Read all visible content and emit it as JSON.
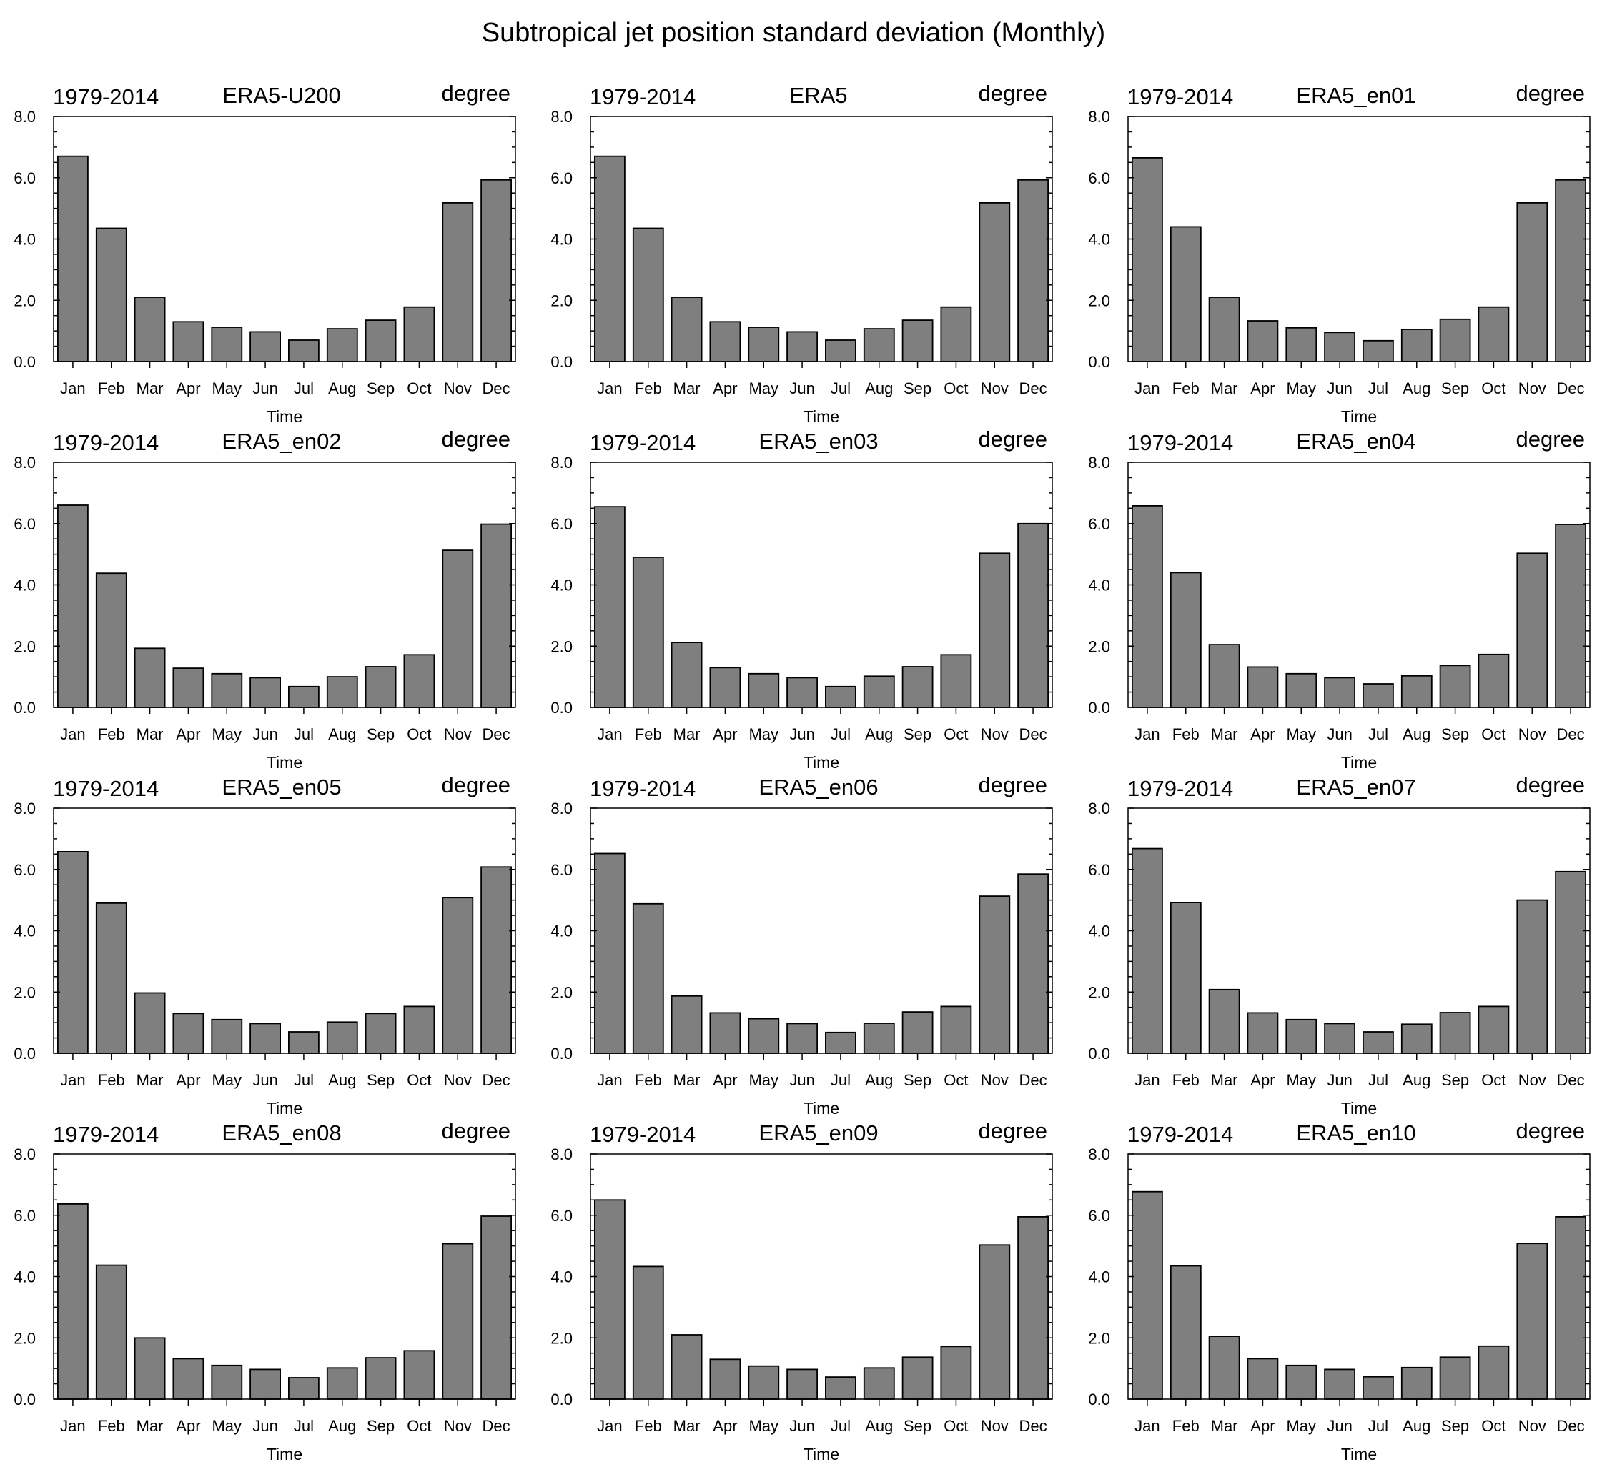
{
  "figure_title": "Subtropical jet position standard deviation (Monthly)",
  "colors": {
    "bar_fill": "#7f7f7f",
    "bar_edge": "#000000",
    "background": "#ffffff"
  },
  "chart_data": [
    {
      "type": "bar",
      "left_label": "1979-2014",
      "title": "ERA5-U200",
      "right_label": "degree",
      "xlabel": "Time",
      "ylabel": "",
      "ylim": [
        0,
        8
      ],
      "yticks": [
        "0.0",
        "2.0",
        "4.0",
        "6.0",
        "8.0"
      ],
      "categories": [
        "Jan",
        "Feb",
        "Mar",
        "Apr",
        "May",
        "Jun",
        "Jul",
        "Aug",
        "Sep",
        "Oct",
        "Nov",
        "Dec"
      ],
      "values": [
        6.7,
        4.35,
        2.1,
        1.3,
        1.12,
        0.97,
        0.7,
        1.07,
        1.35,
        1.78,
        5.18,
        5.93
      ]
    },
    {
      "type": "bar",
      "left_label": "1979-2014",
      "title": "ERA5",
      "right_label": "degree",
      "xlabel": "Time",
      "ylabel": "",
      "ylim": [
        0,
        8
      ],
      "yticks": [
        "0.0",
        "2.0",
        "4.0",
        "6.0",
        "8.0"
      ],
      "categories": [
        "Jan",
        "Feb",
        "Mar",
        "Apr",
        "May",
        "Jun",
        "Jul",
        "Aug",
        "Sep",
        "Oct",
        "Nov",
        "Dec"
      ],
      "values": [
        6.7,
        4.35,
        2.1,
        1.3,
        1.12,
        0.97,
        0.7,
        1.07,
        1.35,
        1.78,
        5.18,
        5.93
      ]
    },
    {
      "type": "bar",
      "left_label": "1979-2014",
      "title": "ERA5_en01",
      "right_label": "degree",
      "xlabel": "Time",
      "ylabel": "",
      "ylim": [
        0,
        8
      ],
      "yticks": [
        "0.0",
        "2.0",
        "4.0",
        "6.0",
        "8.0"
      ],
      "categories": [
        "Jan",
        "Feb",
        "Mar",
        "Apr",
        "May",
        "Jun",
        "Jul",
        "Aug",
        "Sep",
        "Oct",
        "Nov",
        "Dec"
      ],
      "values": [
        6.65,
        4.4,
        2.1,
        1.33,
        1.1,
        0.95,
        0.68,
        1.05,
        1.38,
        1.78,
        5.18,
        5.93
      ]
    },
    {
      "type": "bar",
      "left_label": "1979-2014",
      "title": "ERA5_en02",
      "right_label": "degree",
      "xlabel": "Time",
      "ylabel": "",
      "ylim": [
        0,
        8
      ],
      "yticks": [
        "0.0",
        "2.0",
        "4.0",
        "6.0",
        "8.0"
      ],
      "categories": [
        "Jan",
        "Feb",
        "Mar",
        "Apr",
        "May",
        "Jun",
        "Jul",
        "Aug",
        "Sep",
        "Oct",
        "Nov",
        "Dec"
      ],
      "values": [
        6.6,
        4.38,
        1.93,
        1.28,
        1.1,
        0.97,
        0.68,
        1.0,
        1.33,
        1.72,
        5.13,
        5.98
      ]
    },
    {
      "type": "bar",
      "left_label": "1979-2014",
      "title": "ERA5_en03",
      "right_label": "degree",
      "xlabel": "Time",
      "ylabel": "",
      "ylim": [
        0,
        8
      ],
      "yticks": [
        "0.0",
        "2.0",
        "4.0",
        "6.0",
        "8.0"
      ],
      "categories": [
        "Jan",
        "Feb",
        "Mar",
        "Apr",
        "May",
        "Jun",
        "Jul",
        "Aug",
        "Sep",
        "Oct",
        "Nov",
        "Dec"
      ],
      "values": [
        6.55,
        4.9,
        2.12,
        1.3,
        1.1,
        0.97,
        0.68,
        1.02,
        1.33,
        1.72,
        5.03,
        6.0
      ]
    },
    {
      "type": "bar",
      "left_label": "1979-2014",
      "title": "ERA5_en04",
      "right_label": "degree",
      "xlabel": "Time",
      "ylabel": "",
      "ylim": [
        0,
        8
      ],
      "yticks": [
        "0.0",
        "2.0",
        "4.0",
        "6.0",
        "8.0"
      ],
      "categories": [
        "Jan",
        "Feb",
        "Mar",
        "Apr",
        "May",
        "Jun",
        "Jul",
        "Aug",
        "Sep",
        "Oct",
        "Nov",
        "Dec"
      ],
      "values": [
        6.58,
        4.4,
        2.05,
        1.32,
        1.1,
        0.97,
        0.77,
        1.03,
        1.37,
        1.73,
        5.03,
        5.97
      ]
    },
    {
      "type": "bar",
      "left_label": "1979-2014",
      "title": "ERA5_en05",
      "right_label": "degree",
      "xlabel": "Time",
      "ylabel": "",
      "ylim": [
        0,
        8
      ],
      "yticks": [
        "0.0",
        "2.0",
        "4.0",
        "6.0",
        "8.0"
      ],
      "categories": [
        "Jan",
        "Feb",
        "Mar",
        "Apr",
        "May",
        "Jun",
        "Jul",
        "Aug",
        "Sep",
        "Oct",
        "Nov",
        "Dec"
      ],
      "values": [
        6.58,
        4.9,
        1.97,
        1.3,
        1.1,
        0.97,
        0.7,
        1.02,
        1.3,
        1.53,
        5.08,
        6.08
      ]
    },
    {
      "type": "bar",
      "left_label": "1979-2014",
      "title": "ERA5_en06",
      "right_label": "degree",
      "xlabel": "Time",
      "ylabel": "",
      "ylim": [
        0,
        8
      ],
      "yticks": [
        "0.0",
        "2.0",
        "4.0",
        "6.0",
        "8.0"
      ],
      "categories": [
        "Jan",
        "Feb",
        "Mar",
        "Apr",
        "May",
        "Jun",
        "Jul",
        "Aug",
        "Sep",
        "Oct",
        "Nov",
        "Dec"
      ],
      "values": [
        6.52,
        4.88,
        1.87,
        1.32,
        1.13,
        0.97,
        0.68,
        0.98,
        1.35,
        1.53,
        5.13,
        5.85
      ]
    },
    {
      "type": "bar",
      "left_label": "1979-2014",
      "title": "ERA5_en07",
      "right_label": "degree",
      "xlabel": "Time",
      "ylabel": "",
      "ylim": [
        0,
        8
      ],
      "yticks": [
        "0.0",
        "2.0",
        "4.0",
        "6.0",
        "8.0"
      ],
      "categories": [
        "Jan",
        "Feb",
        "Mar",
        "Apr",
        "May",
        "Jun",
        "Jul",
        "Aug",
        "Sep",
        "Oct",
        "Nov",
        "Dec"
      ],
      "values": [
        6.68,
        4.92,
        2.08,
        1.32,
        1.1,
        0.97,
        0.7,
        0.95,
        1.33,
        1.53,
        5.0,
        5.93
      ]
    },
    {
      "type": "bar",
      "left_label": "1979-2014",
      "title": "ERA5_en08",
      "right_label": "degree",
      "xlabel": "Time",
      "ylabel": "",
      "ylim": [
        0,
        8
      ],
      "yticks": [
        "0.0",
        "2.0",
        "4.0",
        "6.0",
        "8.0"
      ],
      "categories": [
        "Jan",
        "Feb",
        "Mar",
        "Apr",
        "May",
        "Jun",
        "Jul",
        "Aug",
        "Sep",
        "Oct",
        "Nov",
        "Dec"
      ],
      "values": [
        6.37,
        4.37,
        2.0,
        1.32,
        1.1,
        0.97,
        0.7,
        1.02,
        1.35,
        1.58,
        5.07,
        5.97
      ]
    },
    {
      "type": "bar",
      "left_label": "1979-2014",
      "title": "ERA5_en09",
      "right_label": "degree",
      "xlabel": "Time",
      "ylabel": "",
      "ylim": [
        0,
        8
      ],
      "yticks": [
        "0.0",
        "2.0",
        "4.0",
        "6.0",
        "8.0"
      ],
      "categories": [
        "Jan",
        "Feb",
        "Mar",
        "Apr",
        "May",
        "Jun",
        "Jul",
        "Aug",
        "Sep",
        "Oct",
        "Nov",
        "Dec"
      ],
      "values": [
        6.5,
        4.33,
        2.1,
        1.3,
        1.08,
        0.97,
        0.72,
        1.02,
        1.37,
        1.72,
        5.03,
        5.95
      ]
    },
    {
      "type": "bar",
      "left_label": "1979-2014",
      "title": "ERA5_en10",
      "right_label": "degree",
      "xlabel": "Time",
      "ylabel": "",
      "ylim": [
        0,
        8
      ],
      "yticks": [
        "0.0",
        "2.0",
        "4.0",
        "6.0",
        "8.0"
      ],
      "categories": [
        "Jan",
        "Feb",
        "Mar",
        "Apr",
        "May",
        "Jun",
        "Jul",
        "Aug",
        "Sep",
        "Oct",
        "Nov",
        "Dec"
      ],
      "values": [
        6.77,
        4.35,
        2.05,
        1.32,
        1.1,
        0.97,
        0.73,
        1.03,
        1.37,
        1.73,
        5.08,
        5.95
      ]
    }
  ]
}
